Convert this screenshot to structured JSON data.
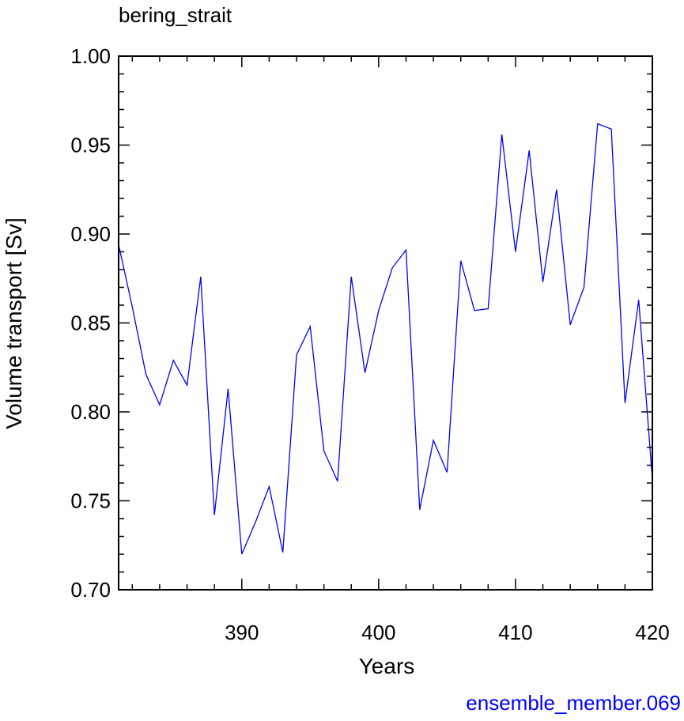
{
  "chart_data": {
    "type": "line",
    "title": "bering_strait",
    "xlabel": "Years",
    "ylabel": "Volume transport [Sv]",
    "xlim": [
      381,
      420
    ],
    "ylim": [
      0.7,
      1.0
    ],
    "x_ticks": [
      "390",
      "400",
      "410",
      "420"
    ],
    "y_ticks": [
      "0.70",
      "0.75",
      "0.80",
      "0.85",
      "0.90",
      "0.95",
      "1.00"
    ],
    "grid": false,
    "line_color": "#0000ff",
    "series": [
      {
        "x": [
          381,
          382,
          383,
          384,
          385,
          386,
          387,
          388,
          389,
          390,
          391,
          392,
          393,
          394,
          395,
          396,
          397,
          398,
          399,
          400,
          401,
          402,
          403,
          404,
          405,
          406,
          407,
          408,
          409,
          410,
          411,
          412,
          413,
          414,
          415,
          416,
          417,
          418,
          419,
          420
        ],
        "values": [
          0.894,
          0.859,
          0.821,
          0.804,
          0.829,
          0.815,
          0.876,
          0.742,
          0.813,
          0.72,
          0.738,
          0.758,
          0.721,
          0.832,
          0.848,
          0.778,
          0.761,
          0.876,
          0.822,
          0.857,
          0.881,
          0.891,
          0.745,
          0.784,
          0.766,
          0.885,
          0.857,
          0.858,
          0.956,
          0.89,
          0.947,
          0.873,
          0.925,
          0.849,
          0.87,
          0.962,
          0.959,
          0.805,
          0.863,
          0.762
        ]
      }
    ]
  },
  "footer": {
    "label": "ensemble_member.069"
  }
}
